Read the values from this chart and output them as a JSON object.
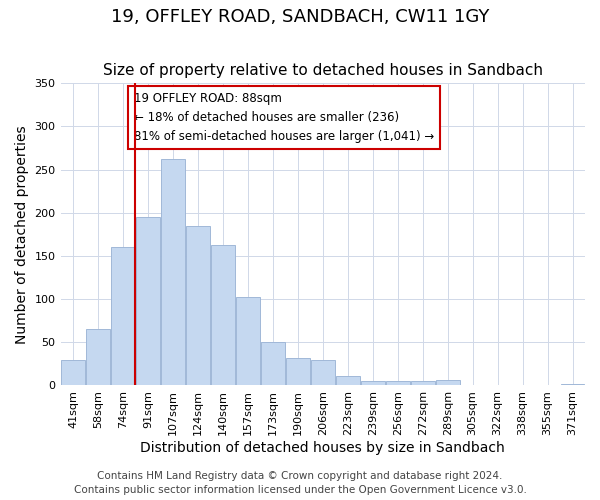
{
  "title": "19, OFFLEY ROAD, SANDBACH, CW11 1GY",
  "subtitle": "Size of property relative to detached houses in Sandbach",
  "xlabel": "Distribution of detached houses by size in Sandbach",
  "ylabel": "Number of detached properties",
  "bar_labels": [
    "41sqm",
    "58sqm",
    "74sqm",
    "91sqm",
    "107sqm",
    "124sqm",
    "140sqm",
    "157sqm",
    "173sqm",
    "190sqm",
    "206sqm",
    "223sqm",
    "239sqm",
    "256sqm",
    "272sqm",
    "289sqm",
    "305sqm",
    "322sqm",
    "338sqm",
    "355sqm",
    "371sqm"
  ],
  "bar_values": [
    30,
    65,
    160,
    195,
    262,
    185,
    163,
    103,
    50,
    32,
    30,
    11,
    5,
    5,
    5,
    6,
    0,
    0,
    0,
    0,
    2
  ],
  "bar_color": "#c5d8f0",
  "bar_edge_color": "#a0b8d8",
  "vline_color": "#cc0000",
  "annotation_title": "19 OFFLEY ROAD: 88sqm",
  "annotation_line1": "← 18% of detached houses are smaller (236)",
  "annotation_line2": "81% of semi-detached houses are larger (1,041) →",
  "annotation_box_color": "#ffffff",
  "annotation_box_edge": "#cc0000",
  "ylim": [
    0,
    350
  ],
  "yticks": [
    0,
    50,
    100,
    150,
    200,
    250,
    300,
    350
  ],
  "footer_line1": "Contains HM Land Registry data © Crown copyright and database right 2024.",
  "footer_line2": "Contains public sector information licensed under the Open Government Licence v3.0.",
  "title_fontsize": 13,
  "subtitle_fontsize": 11,
  "axis_label_fontsize": 10,
  "tick_fontsize": 8,
  "footer_fontsize": 7.5
}
